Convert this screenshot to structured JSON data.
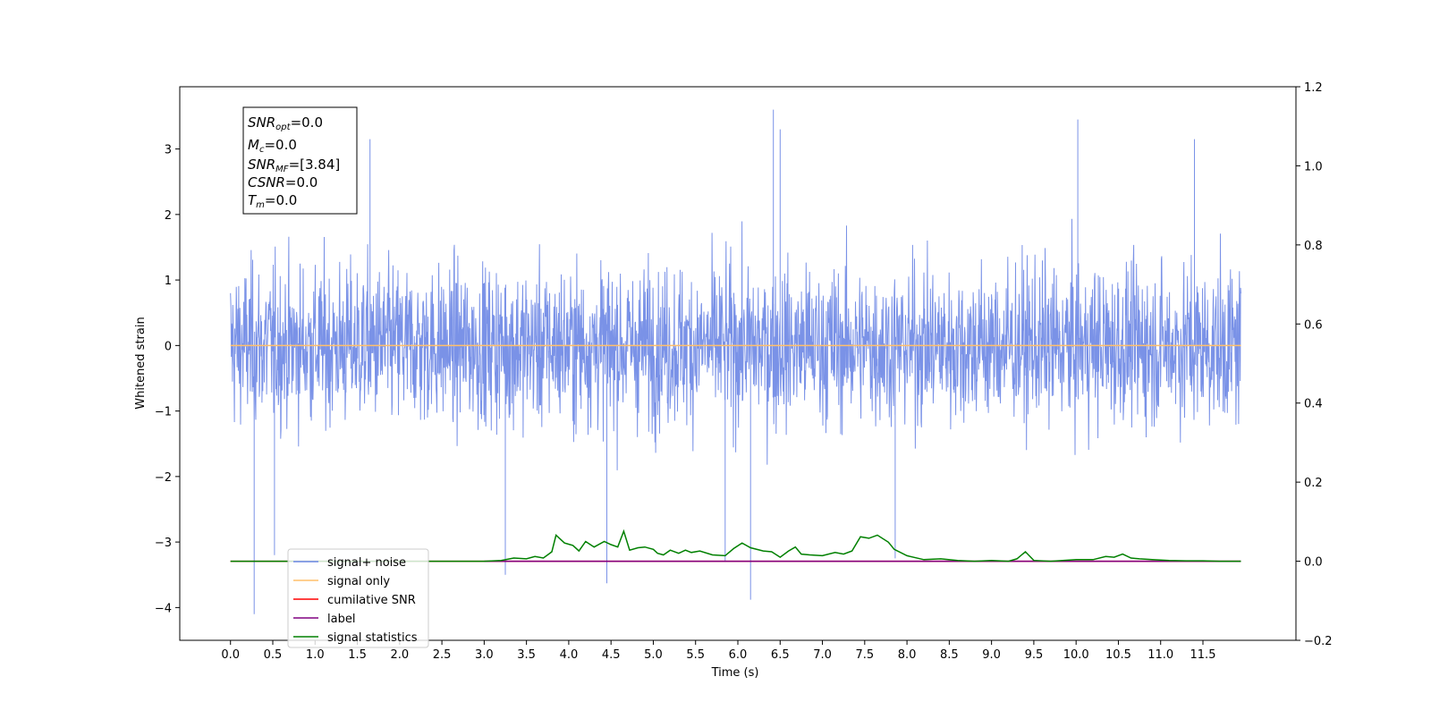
{
  "chart_data": {
    "type": "line",
    "title": "",
    "xlabel": "Time (s)",
    "ylabel": "Whitened strain",
    "xlim": [
      -0.6,
      12.6
    ],
    "ylim": [
      -4.5,
      3.95
    ],
    "ylim_right": [
      -0.2,
      1.2
    ],
    "grid": false,
    "legend_position": "lower-left",
    "x_ticks": [
      "0.0",
      "0.5",
      "1.0",
      "1.5",
      "2.0",
      "2.5",
      "3.0",
      "3.5",
      "4.0",
      "4.5",
      "5.0",
      "5.5",
      "6.0",
      "6.5",
      "7.0",
      "7.5",
      "8.0",
      "8.5",
      "9.0",
      "9.5",
      "10.0",
      "10.5",
      "11.0",
      "11.5"
    ],
    "y_ticks_left": [
      "3",
      "2",
      "1",
      "0",
      "−1",
      "−2",
      "−3",
      "−4"
    ],
    "y_ticks_right": [
      "1.2",
      "1.0",
      "0.8",
      "0.6",
      "0.4",
      "0.2",
      "0.0",
      "−0.2"
    ],
    "series": [
      {
        "name": "signal+ noise",
        "axis": "left",
        "color": "#6c86e4",
        "description": "whitened noisy strain, approx range -4.1 to 3.6, sampled densely from 0.0 to 11.95 s",
        "x_range": [
          0.0,
          11.95
        ],
        "spikes": [
          {
            "x": 0.28,
            "y": -4.1
          },
          {
            "x": 4.45,
            "y": -3.63
          },
          {
            "x": 6.15,
            "y": -3.88
          },
          {
            "x": 6.42,
            "y": 3.6
          },
          {
            "x": 10.02,
            "y": 3.45
          },
          {
            "x": 0.52,
            "y": -3.2
          },
          {
            "x": 3.25,
            "y": -3.5
          },
          {
            "x": 6.5,
            "y": 3.3
          },
          {
            "x": 7.86,
            "y": -3.25
          },
          {
            "x": 11.4,
            "y": 3.15
          },
          {
            "x": 5.85,
            "y": -3.3
          },
          {
            "x": 1.65,
            "y": 3.15
          }
        ]
      },
      {
        "name": "signal only",
        "axis": "left",
        "color": "#ffbf6b",
        "x": [
          0.0,
          11.95
        ],
        "y": [
          0.0,
          0.0
        ]
      },
      {
        "name": "cumilative SNR",
        "axis": "right",
        "color": "#ff0000",
        "x": [
          0.0,
          11.95
        ],
        "y": [
          0.0,
          0.0
        ]
      },
      {
        "name": "label",
        "axis": "right",
        "color": "#800080",
        "x": [
          3.0,
          11.95
        ],
        "y": [
          0.0,
          0.0
        ]
      },
      {
        "name": "signal statistics",
        "axis": "right",
        "color": "#008000",
        "x": [
          0.0,
          3.0,
          3.2,
          3.35,
          3.5,
          3.6,
          3.7,
          3.75,
          3.8,
          3.85,
          3.95,
          4.05,
          4.12,
          4.2,
          4.3,
          4.42,
          4.5,
          4.58,
          4.65,
          4.72,
          4.82,
          4.9,
          5.0,
          5.05,
          5.12,
          5.2,
          5.3,
          5.38,
          5.45,
          5.55,
          5.7,
          5.85,
          5.95,
          6.05,
          6.15,
          6.3,
          6.4,
          6.5,
          6.6,
          6.68,
          6.75,
          6.85,
          7.0,
          7.15,
          7.25,
          7.35,
          7.45,
          7.55,
          7.65,
          7.78,
          7.85,
          8.0,
          8.2,
          8.4,
          8.6,
          8.8,
          9.0,
          9.2,
          9.3,
          9.4,
          9.5,
          9.7,
          10.0,
          10.2,
          10.35,
          10.45,
          10.55,
          10.65,
          10.75,
          10.9,
          11.1,
          11.3,
          11.5,
          11.7,
          11.95
        ],
        "y": [
          0.0,
          0.0,
          0.002,
          0.008,
          0.006,
          0.012,
          0.008,
          0.016,
          0.024,
          0.066,
          0.046,
          0.04,
          0.026,
          0.05,
          0.036,
          0.05,
          0.042,
          0.036,
          0.076,
          0.028,
          0.034,
          0.036,
          0.03,
          0.02,
          0.016,
          0.028,
          0.02,
          0.028,
          0.022,
          0.026,
          0.016,
          0.014,
          0.032,
          0.046,
          0.034,
          0.026,
          0.024,
          0.01,
          0.026,
          0.036,
          0.018,
          0.016,
          0.014,
          0.022,
          0.018,
          0.026,
          0.062,
          0.058,
          0.066,
          0.048,
          0.03,
          0.014,
          0.004,
          0.006,
          0.002,
          0.0,
          0.002,
          0.0,
          0.006,
          0.024,
          0.002,
          0.0,
          0.004,
          0.004,
          0.012,
          0.01,
          0.018,
          0.008,
          0.006,
          0.004,
          0.002,
          0.001,
          0.001,
          0.0,
          0.0
        ]
      }
    ]
  },
  "info_box": {
    "snr_opt_main": "SNR",
    "snr_opt_sub": "opt",
    "snr_opt_value": "=0.0",
    "mc_main": "M",
    "mc_sub": "c",
    "mc_value": "=0.0",
    "snr_mf_main": "SNR",
    "snr_mf_sub": "MF",
    "snr_mf_value": "=[3.84]",
    "csnr_main": "CSNR",
    "csnr_value": "=0.0",
    "tm_main": "T",
    "tm_sub": "m",
    "tm_value": "=0.0"
  },
  "legend": {
    "entries": [
      {
        "label": "signal+ noise",
        "color": "#6c86e4"
      },
      {
        "label": "signal only",
        "color": "#ffbf6b"
      },
      {
        "label": "cumilative SNR",
        "color": "#ff0000"
      },
      {
        "label": "label",
        "color": "#800080"
      },
      {
        "label": "signal statistics",
        "color": "#008000"
      }
    ]
  }
}
